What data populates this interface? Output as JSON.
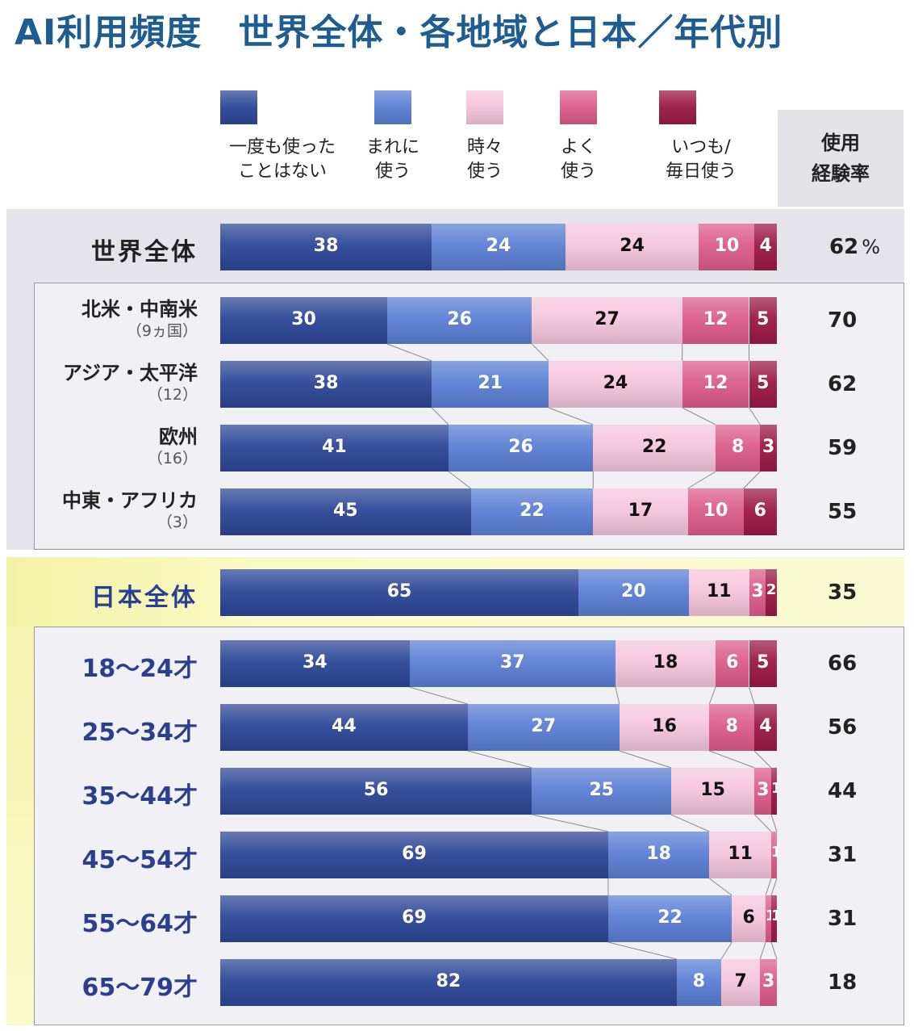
{
  "title": "AI利用頻度　世界全体・各地域と日本／年代別",
  "colors": {
    "never": "#2e4797",
    "rarely": "#5b80d4",
    "sometimes": "#f5c6dc",
    "often": "#dc5d8b",
    "always": "#9c1a45"
  },
  "rate_header": {
    "line1": "使用",
    "line2": "経験率"
  },
  "chart_data": {
    "type": "bar",
    "stacked": true,
    "orientation": "horizontal",
    "xlim": [
      0,
      100
    ],
    "unit": "%",
    "series": [
      {
        "key": "never",
        "name": "一度も使ったことはない",
        "lines": [
          "一度も使った",
          "ことはない"
        ]
      },
      {
        "key": "rarely",
        "name": "まれに使う",
        "lines": [
          "まれに",
          "使う"
        ]
      },
      {
        "key": "sometimes",
        "name": "時々使う",
        "lines": [
          "時々",
          "使う"
        ]
      },
      {
        "key": "often",
        "name": "よく使う",
        "lines": [
          "よく",
          "使う"
        ]
      },
      {
        "key": "always",
        "name": "いつも/毎日使う",
        "lines": [
          "いつも/",
          "毎日使う"
        ]
      }
    ],
    "rows": [
      {
        "label": "世界全体",
        "sub": "",
        "values": [
          38,
          24,
          24,
          10,
          4
        ],
        "rate": "62",
        "rate_unit": "%"
      },
      {
        "label": "北米・中南米",
        "sub": "（9ヵ国）",
        "values": [
          30,
          26,
          27,
          12,
          5
        ],
        "rate": "70",
        "rate_unit": ""
      },
      {
        "label": "アジア・太平洋",
        "sub": "（12）",
        "values": [
          38,
          21,
          24,
          12,
          5
        ],
        "rate": "62",
        "rate_unit": ""
      },
      {
        "label": "欧州",
        "sub": "（16）",
        "values": [
          41,
          26,
          22,
          8,
          3
        ],
        "rate": "59",
        "rate_unit": ""
      },
      {
        "label": "中東・アフリカ",
        "sub": "（3）",
        "values": [
          45,
          22,
          17,
          10,
          6
        ],
        "rate": "55",
        "rate_unit": ""
      },
      {
        "label": "日本全体",
        "sub": "",
        "values": [
          65,
          20,
          11,
          3,
          2
        ],
        "rate": "35",
        "rate_unit": ""
      },
      {
        "label": "18～24才",
        "sub": "",
        "values": [
          34,
          37,
          18,
          6,
          5
        ],
        "rate": "66",
        "rate_unit": ""
      },
      {
        "label": "25～34才",
        "sub": "",
        "values": [
          44,
          27,
          16,
          8,
          4
        ],
        "rate": "56",
        "rate_unit": ""
      },
      {
        "label": "35～44才",
        "sub": "",
        "values": [
          56,
          25,
          15,
          3,
          1
        ],
        "rate": "44",
        "rate_unit": ""
      },
      {
        "label": "45～54才",
        "sub": "",
        "values": [
          69,
          18,
          11,
          1,
          0
        ],
        "rate": "31",
        "rate_unit": ""
      },
      {
        "label": "55～64才",
        "sub": "",
        "values": [
          69,
          22,
          6,
          1,
          1
        ],
        "rate": "31",
        "rate_unit": ""
      },
      {
        "label": "65～79才",
        "sub": "",
        "values": [
          82,
          8,
          7,
          3,
          0
        ],
        "rate": "18",
        "rate_unit": ""
      }
    ]
  }
}
